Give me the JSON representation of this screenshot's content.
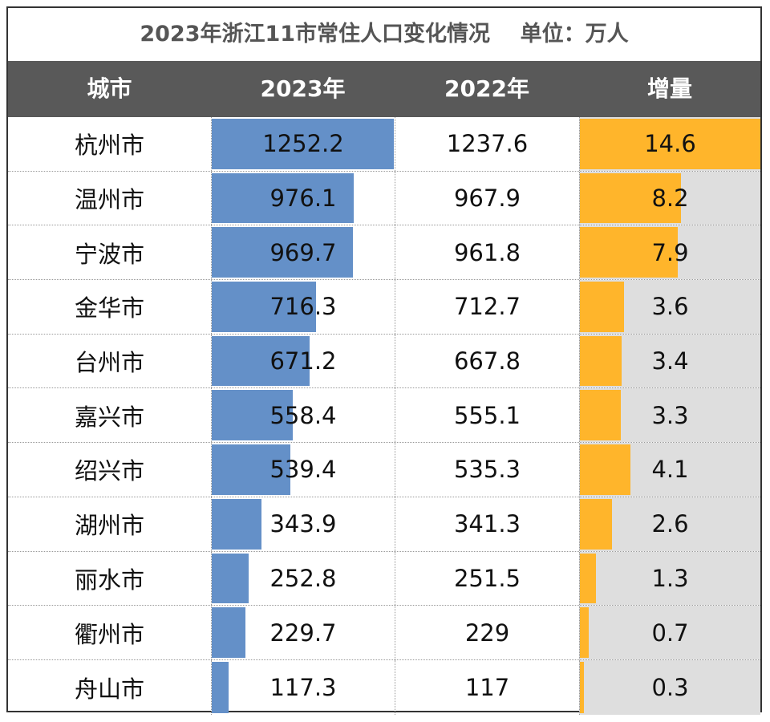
{
  "title": "2023年浙江11市常住人口变化情况    单位：万人",
  "colors": {
    "header_bg": "#595959",
    "bar_2023": "#6490c8",
    "bar_increase": "#ffb52b",
    "increase_bg": "#dedede"
  },
  "chart_data": {
    "type": "table",
    "title": "2023年浙江11市常住人口变化情况    单位：万人",
    "columns": [
      "城市",
      "2023年",
      "2022年",
      "增量"
    ],
    "data_bars": [
      "2023年",
      "增量"
    ],
    "rows": [
      {
        "city": "杭州市",
        "y2023": "1252.2",
        "y2022": "1237.6",
        "inc": "14.6"
      },
      {
        "city": "温州市",
        "y2023": "976.1",
        "y2022": "967.9",
        "inc": "8.2"
      },
      {
        "city": "宁波市",
        "y2023": "969.7",
        "y2022": "961.8",
        "inc": "7.9"
      },
      {
        "city": "金华市",
        "y2023": "716.3",
        "y2022": "712.7",
        "inc": "3.6"
      },
      {
        "city": "台州市",
        "y2023": "671.2",
        "y2022": "667.8",
        "inc": "3.4"
      },
      {
        "city": "嘉兴市",
        "y2023": "558.4",
        "y2022": "555.1",
        "inc": "3.3"
      },
      {
        "city": "绍兴市",
        "y2023": "539.4",
        "y2022": "535.3",
        "inc": "4.1"
      },
      {
        "city": "湖州市",
        "y2023": "343.9",
        "y2022": "341.3",
        "inc": "2.6"
      },
      {
        "city": "丽水市",
        "y2023": "252.8",
        "y2022": "251.5",
        "inc": "1.3"
      },
      {
        "city": "衢州市",
        "y2023": "229.7",
        "y2022": "229",
        "inc": "0.7"
      },
      {
        "city": "舟山市",
        "y2023": "117.3",
        "y2022": "117",
        "inc": "0.3"
      }
    ]
  }
}
